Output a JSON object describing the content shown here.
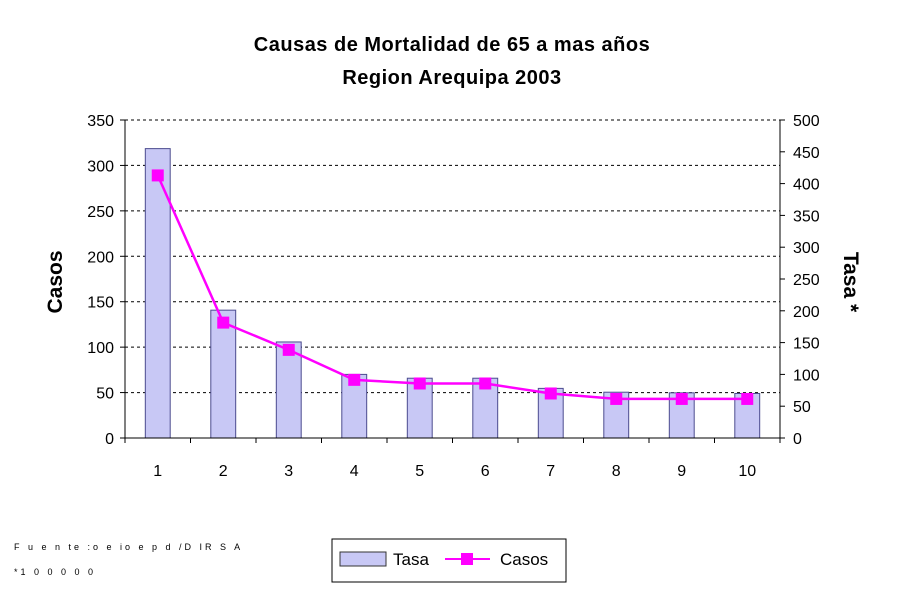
{
  "chart_data": {
    "type": "bar+line",
    "title": "Causas de Mortalidad de 65 a mas años",
    "subtitle": "Region Arequipa 2003",
    "categories": [
      "1",
      "2",
      "3",
      "4",
      "5",
      "6",
      "7",
      "8",
      "9",
      "10"
    ],
    "series": [
      {
        "name": "Tasa",
        "type": "bar",
        "axis": "right",
        "values": [
          455,
          201,
          151,
          100,
          94,
          94,
          78,
          72,
          71,
          70
        ],
        "color": "#c8c8f5"
      },
      {
        "name": "Casos",
        "type": "line",
        "axis": "left",
        "values": [
          289,
          127,
          97,
          64,
          60,
          60,
          49,
          43,
          43,
          43
        ],
        "color": "#ff00ff"
      }
    ],
    "ylabel": "Casos",
    "y2label": "Tasa *",
    "ylim": [
      0,
      350
    ],
    "yticks": [
      0,
      50,
      100,
      150,
      200,
      250,
      300,
      350
    ],
    "y2lim": [
      0,
      500
    ],
    "y2ticks": [
      0,
      50,
      100,
      150,
      200,
      250,
      300,
      350,
      400,
      450,
      500
    ],
    "grid": true,
    "legend": "bottom"
  },
  "notes": {
    "source": "F u e n te :o e io e p d /D IR S A",
    "factor": "*1 0 0 0 0 0"
  }
}
